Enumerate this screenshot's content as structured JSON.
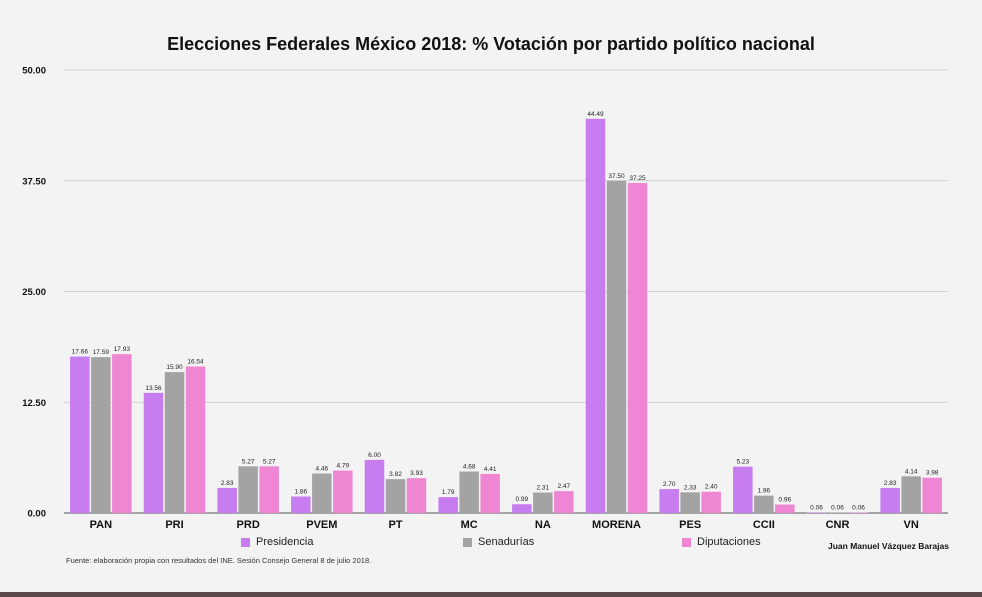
{
  "chart_data": {
    "type": "bar",
    "title": "Elecciones Federales México 2018: % Votación por partido político nacional",
    "categories": [
      "PAN",
      "PRI",
      "PRD",
      "PVEM",
      "PT",
      "MC",
      "NA",
      "MORENA",
      "PES",
      "CCII",
      "CNR",
      "VN"
    ],
    "series": [
      {
        "name": "Presidencia",
        "color": "#c77cf0",
        "values": [
          17.66,
          13.56,
          2.83,
          1.86,
          6.0,
          1.79,
          0.99,
          44.49,
          2.7,
          5.23,
          0.06,
          2.83
        ]
      },
      {
        "name": "Senadurías",
        "color": "#a3a3a3",
        "values": [
          17.59,
          15.9,
          5.27,
          4.46,
          3.82,
          4.68,
          2.31,
          37.5,
          2.33,
          1.96,
          0.06,
          4.14
        ]
      },
      {
        "name": "Diputaciones",
        "color": "#ef86d3",
        "values": [
          17.93,
          16.54,
          5.27,
          4.79,
          3.93,
          4.41,
          2.47,
          37.25,
          2.4,
          0.96,
          0.06,
          3.98
        ]
      }
    ],
    "data_labels": [
      [
        "17.66",
        "13.56",
        "2.83",
        "1.86",
        "6.00",
        "1.79",
        "0.99",
        "44.49",
        "2.70",
        "5.23",
        "0.06",
        "2.83"
      ],
      [
        "17.59",
        "15.90",
        "5.27",
        "4.46",
        "3.82",
        "4.68",
        "2.31",
        "37.50",
        "2.33",
        "1.96",
        "0.06",
        "4.14"
      ],
      [
        "17.93",
        "16.54",
        "5.27",
        "4.79",
        "3.93",
        "4.41",
        "2.47",
        "37.25",
        "2.40",
        "0.96",
        "0.06",
        "3.98"
      ]
    ],
    "yticks": [
      0,
      12.5,
      25,
      37.5,
      50
    ],
    "ytick_labels": [
      "0.00",
      "12.50",
      "25.00",
      "37.50",
      "50.00"
    ],
    "ylim": [
      0,
      50
    ],
    "xlabel": "",
    "ylabel": "",
    "grid": true,
    "legend_position": "bottom"
  },
  "source_note": "Fuente: elaboración propia con resultados del INE. Sesión Consejo General 8 de julio 2018.",
  "author": "Juan Manuel Vázquez Barajas"
}
